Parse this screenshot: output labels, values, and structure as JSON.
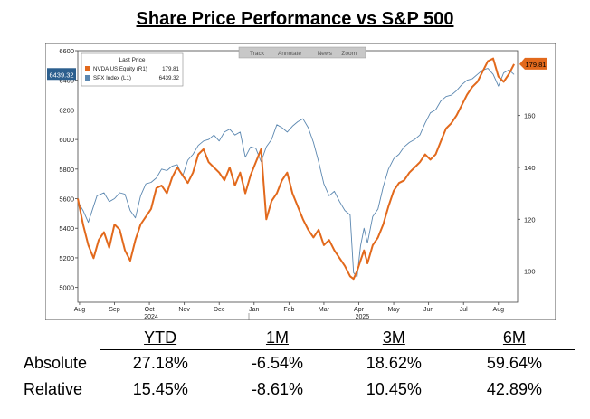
{
  "title": "Share Price Performance vs S&P 500",
  "toolbar": [
    "Track",
    "Annotate",
    "News",
    "Zoom"
  ],
  "legend": {
    "title": "Last Price",
    "entries": [
      {
        "label": "NVDA US Equity (R1)",
        "value": "179.81",
        "color": "#e2691c"
      },
      {
        "label": "SPX Index (L1)",
        "value": "6439.32",
        "color": "#5b87b0"
      }
    ]
  },
  "chart_data": {
    "type": "line",
    "x_months": [
      "Aug",
      "Sep",
      "Oct",
      "Nov",
      "Dec",
      "Jan",
      "Feb",
      "Mar",
      "Apr",
      "May",
      "Jun",
      "Jul",
      "Aug"
    ],
    "years": [
      "2024",
      "2025"
    ],
    "left_axis": {
      "ticks": [
        "6600",
        "6400",
        "6200",
        "6000",
        "5800",
        "5600",
        "5400",
        "5200",
        "5000"
      ],
      "range": [
        4900,
        6600
      ]
    },
    "right_axis": {
      "ticks": [
        "160",
        "140",
        "120",
        "100"
      ],
      "range": [
        88,
        185
      ]
    },
    "last_labels": {
      "left": "6439.32",
      "right": "179.81"
    },
    "series": [
      {
        "name": "SPX Index (L1)",
        "axis": "left",
        "color": "#5b87b0",
        "points": [
          [
            0,
            5580
          ],
          [
            0.15,
            5520
          ],
          [
            0.3,
            5440
          ],
          [
            0.55,
            5620
          ],
          [
            0.75,
            5640
          ],
          [
            0.9,
            5580
          ],
          [
            1.05,
            5600
          ],
          [
            1.2,
            5640
          ],
          [
            1.35,
            5630
          ],
          [
            1.5,
            5520
          ],
          [
            1.65,
            5470
          ],
          [
            1.8,
            5620
          ],
          [
            1.95,
            5700
          ],
          [
            2.1,
            5710
          ],
          [
            2.25,
            5740
          ],
          [
            2.4,
            5800
          ],
          [
            2.55,
            5790
          ],
          [
            2.7,
            5820
          ],
          [
            2.85,
            5830
          ],
          [
            3.0,
            5750
          ],
          [
            3.15,
            5860
          ],
          [
            3.3,
            5900
          ],
          [
            3.45,
            5960
          ],
          [
            3.6,
            5990
          ],
          [
            3.75,
            6000
          ],
          [
            3.9,
            6030
          ],
          [
            4.05,
            5990
          ],
          [
            4.2,
            6050
          ],
          [
            4.35,
            6070
          ],
          [
            4.5,
            6030
          ],
          [
            4.65,
            6050
          ],
          [
            4.8,
            5880
          ],
          [
            4.95,
            5950
          ],
          [
            5.1,
            5940
          ],
          [
            5.25,
            5850
          ],
          [
            5.4,
            5950
          ],
          [
            5.55,
            6000
          ],
          [
            5.7,
            6100
          ],
          [
            5.85,
            6080
          ],
          [
            6.0,
            6050
          ],
          [
            6.15,
            6090
          ],
          [
            6.3,
            6120
          ],
          [
            6.45,
            6140
          ],
          [
            6.6,
            6080
          ],
          [
            6.75,
            5980
          ],
          [
            6.9,
            5850
          ],
          [
            7.05,
            5700
          ],
          [
            7.2,
            5620
          ],
          [
            7.35,
            5650
          ],
          [
            7.5,
            5580
          ],
          [
            7.65,
            5520
          ],
          [
            7.8,
            5490
          ],
          [
            7.9,
            5100
          ],
          [
            8.0,
            5070
          ],
          [
            8.1,
            5280
          ],
          [
            8.2,
            5400
          ],
          [
            8.3,
            5300
          ],
          [
            8.45,
            5480
          ],
          [
            8.6,
            5530
          ],
          [
            8.75,
            5680
          ],
          [
            8.9,
            5800
          ],
          [
            9.05,
            5870
          ],
          [
            9.2,
            5900
          ],
          [
            9.35,
            5950
          ],
          [
            9.5,
            5980
          ],
          [
            9.65,
            6000
          ],
          [
            9.8,
            6030
          ],
          [
            9.95,
            6110
          ],
          [
            10.1,
            6180
          ],
          [
            10.25,
            6200
          ],
          [
            10.4,
            6260
          ],
          [
            10.55,
            6290
          ],
          [
            10.7,
            6300
          ],
          [
            10.85,
            6330
          ],
          [
            11.0,
            6370
          ],
          [
            11.15,
            6400
          ],
          [
            11.3,
            6410
          ],
          [
            11.45,
            6440
          ],
          [
            11.6,
            6470
          ],
          [
            11.75,
            6480
          ],
          [
            11.9,
            6440
          ],
          [
            12.05,
            6360
          ],
          [
            12.2,
            6450
          ],
          [
            12.35,
            6470
          ],
          [
            12.5,
            6439.32
          ]
        ]
      },
      {
        "name": "NVDA US Equity (R1)",
        "axis": "right",
        "color": "#e2691c",
        "points": [
          [
            0,
            128
          ],
          [
            0.15,
            118
          ],
          [
            0.3,
            110
          ],
          [
            0.45,
            105
          ],
          [
            0.6,
            112
          ],
          [
            0.75,
            115
          ],
          [
            0.9,
            109
          ],
          [
            1.05,
            118
          ],
          [
            1.2,
            116
          ],
          [
            1.35,
            108
          ],
          [
            1.5,
            104
          ],
          [
            1.65,
            112
          ],
          [
            1.8,
            118
          ],
          [
            1.95,
            121
          ],
          [
            2.1,
            124
          ],
          [
            2.25,
            132
          ],
          [
            2.4,
            133
          ],
          [
            2.55,
            130
          ],
          [
            2.7,
            136
          ],
          [
            2.85,
            140
          ],
          [
            3.0,
            137
          ],
          [
            3.15,
            134
          ],
          [
            3.3,
            138
          ],
          [
            3.45,
            145
          ],
          [
            3.6,
            147
          ],
          [
            3.75,
            142
          ],
          [
            3.9,
            140
          ],
          [
            4.05,
            138
          ],
          [
            4.2,
            135
          ],
          [
            4.35,
            140
          ],
          [
            4.5,
            133
          ],
          [
            4.65,
            138
          ],
          [
            4.8,
            130
          ],
          [
            4.95,
            137
          ],
          [
            5.1,
            142
          ],
          [
            5.25,
            147
          ],
          [
            5.4,
            120
          ],
          [
            5.55,
            127
          ],
          [
            5.7,
            130
          ],
          [
            5.85,
            135
          ],
          [
            6.0,
            138
          ],
          [
            6.15,
            130
          ],
          [
            6.3,
            125
          ],
          [
            6.45,
            120
          ],
          [
            6.6,
            116
          ],
          [
            6.75,
            113
          ],
          [
            6.9,
            116
          ],
          [
            7.05,
            110
          ],
          [
            7.2,
            112
          ],
          [
            7.35,
            108
          ],
          [
            7.5,
            105
          ],
          [
            7.65,
            102
          ],
          [
            7.8,
            98
          ],
          [
            7.9,
            97
          ],
          [
            8.0,
            100
          ],
          [
            8.1,
            104
          ],
          [
            8.2,
            108
          ],
          [
            8.3,
            103
          ],
          [
            8.45,
            110
          ],
          [
            8.6,
            113
          ],
          [
            8.75,
            118
          ],
          [
            8.9,
            125
          ],
          [
            9.05,
            131
          ],
          [
            9.2,
            134
          ],
          [
            9.35,
            135
          ],
          [
            9.5,
            138
          ],
          [
            9.65,
            140
          ],
          [
            9.8,
            142
          ],
          [
            9.95,
            145
          ],
          [
            10.1,
            143
          ],
          [
            10.25,
            145
          ],
          [
            10.4,
            150
          ],
          [
            10.55,
            155
          ],
          [
            10.7,
            157
          ],
          [
            10.85,
            160
          ],
          [
            11.0,
            164
          ],
          [
            11.15,
            168
          ],
          [
            11.3,
            171
          ],
          [
            11.45,
            173
          ],
          [
            11.6,
            177
          ],
          [
            11.75,
            181
          ],
          [
            11.9,
            182
          ],
          [
            12.05,
            175
          ],
          [
            12.2,
            173
          ],
          [
            12.35,
            176
          ],
          [
            12.5,
            179.81
          ]
        ]
      }
    ]
  },
  "table": {
    "headers": [
      "YTD",
      "1M",
      "3M",
      "6M"
    ],
    "rows": [
      {
        "label": "Absolute",
        "values": [
          "27.18%",
          "-6.54%",
          "18.62%",
          "59.64%"
        ]
      },
      {
        "label": "Relative",
        "values": [
          "15.45%",
          "-8.61%",
          "10.45%",
          "42.89%"
        ]
      }
    ]
  }
}
